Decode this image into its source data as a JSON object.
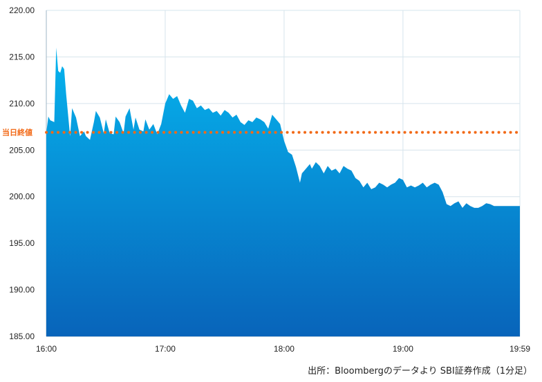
{
  "chart_data": {
    "type": "area",
    "x_tick_labels": [
      "16:00",
      "17:00",
      "18:00",
      "19:00",
      "19:59"
    ],
    "x_tick_minutes": [
      0,
      60,
      120,
      180,
      239
    ],
    "y_tick_labels": [
      "185.00",
      "190.00",
      "195.00",
      "200.00",
      "205.00",
      "210.00",
      "215.00",
      "220.00"
    ],
    "y_ticks": [
      185,
      190,
      195,
      200,
      205,
      210,
      215,
      220
    ],
    "ylim": [
      185,
      220
    ],
    "xlim": [
      0,
      239
    ],
    "reference_line": {
      "label": "当日終値",
      "value": 206.9
    },
    "series": [
      {
        "points": [
          [
            0,
            206.9
          ],
          [
            1,
            208.6
          ],
          [
            2,
            208.2
          ],
          [
            4,
            208.0
          ],
          [
            5,
            216.0
          ],
          [
            6,
            213.5
          ],
          [
            7,
            213.3
          ],
          [
            8,
            214.0
          ],
          [
            9,
            213.7
          ],
          [
            10,
            211.0
          ],
          [
            12,
            206.5
          ],
          [
            13,
            209.5
          ],
          [
            15,
            208.5
          ],
          [
            17,
            206.5
          ],
          [
            19,
            207.0
          ],
          [
            20,
            206.5
          ],
          [
            22,
            206.1
          ],
          [
            24,
            208.0
          ],
          [
            25,
            209.2
          ],
          [
            27,
            208.5
          ],
          [
            29,
            206.8
          ],
          [
            30,
            208.3
          ],
          [
            32,
            206.8
          ],
          [
            34,
            206.7
          ],
          [
            35,
            208.6
          ],
          [
            37,
            208.0
          ],
          [
            39,
            206.8
          ],
          [
            40,
            208.6
          ],
          [
            42,
            209.5
          ],
          [
            44,
            207.2
          ],
          [
            45,
            208.5
          ],
          [
            47,
            207.2
          ],
          [
            49,
            207.0
          ],
          [
            50,
            208.3
          ],
          [
            52,
            207.2
          ],
          [
            54,
            207.8
          ],
          [
            56,
            206.7
          ],
          [
            58,
            207.8
          ],
          [
            60,
            210.0
          ],
          [
            62,
            211.0
          ],
          [
            64,
            210.5
          ],
          [
            66,
            210.8
          ],
          [
            68,
            209.8
          ],
          [
            70,
            209.0
          ],
          [
            72,
            210.5
          ],
          [
            74,
            210.3
          ],
          [
            76,
            209.5
          ],
          [
            78,
            209.8
          ],
          [
            80,
            209.3
          ],
          [
            82,
            209.5
          ],
          [
            84,
            209.0
          ],
          [
            86,
            209.2
          ],
          [
            88,
            208.7
          ],
          [
            90,
            209.3
          ],
          [
            92,
            209.0
          ],
          [
            94,
            208.5
          ],
          [
            96,
            208.8
          ],
          [
            98,
            208.0
          ],
          [
            100,
            207.7
          ],
          [
            102,
            208.2
          ],
          [
            104,
            208.0
          ],
          [
            106,
            208.5
          ],
          [
            108,
            208.3
          ],
          [
            110,
            208.0
          ],
          [
            112,
            207.3
          ],
          [
            114,
            208.8
          ],
          [
            116,
            208.3
          ],
          [
            118,
            207.8
          ],
          [
            120,
            206.0
          ],
          [
            122,
            204.8
          ],
          [
            124,
            204.5
          ],
          [
            126,
            203.2
          ],
          [
            128,
            201.5
          ],
          [
            129,
            202.5
          ],
          [
            131,
            203.0
          ],
          [
            133,
            203.5
          ],
          [
            134,
            203.0
          ],
          [
            136,
            203.7
          ],
          [
            138,
            203.3
          ],
          [
            140,
            202.5
          ],
          [
            142,
            203.3
          ],
          [
            144,
            202.8
          ],
          [
            146,
            203.0
          ],
          [
            148,
            202.5
          ],
          [
            150,
            203.3
          ],
          [
            152,
            203.0
          ],
          [
            154,
            202.8
          ],
          [
            156,
            202.0
          ],
          [
            158,
            201.7
          ],
          [
            160,
            201.0
          ],
          [
            162,
            201.5
          ],
          [
            164,
            200.8
          ],
          [
            166,
            201.0
          ],
          [
            168,
            201.5
          ],
          [
            170,
            201.3
          ],
          [
            172,
            201.0
          ],
          [
            174,
            201.3
          ],
          [
            176,
            201.5
          ],
          [
            178,
            202.0
          ],
          [
            180,
            201.8
          ],
          [
            182,
            201.0
          ],
          [
            184,
            201.2
          ],
          [
            186,
            201.0
          ],
          [
            188,
            201.2
          ],
          [
            190,
            201.5
          ],
          [
            192,
            201.0
          ],
          [
            194,
            201.3
          ],
          [
            196,
            201.5
          ],
          [
            198,
            201.3
          ],
          [
            200,
            200.5
          ],
          [
            202,
            199.2
          ],
          [
            204,
            199.0
          ],
          [
            206,
            199.3
          ],
          [
            208,
            199.5
          ],
          [
            210,
            198.8
          ],
          [
            212,
            199.3
          ],
          [
            214,
            199.0
          ],
          [
            216,
            198.8
          ],
          [
            218,
            198.8
          ],
          [
            220,
            199.0
          ],
          [
            222,
            199.3
          ],
          [
            224,
            199.2
          ],
          [
            226,
            199.0
          ],
          [
            228,
            199.0
          ],
          [
            230,
            199.0
          ],
          [
            232,
            199.0
          ],
          [
            234,
            199.0
          ],
          [
            236,
            199.0
          ],
          [
            239,
            199.0
          ]
        ]
      }
    ],
    "colors": {
      "area_top": "#06b4ee",
      "area_bottom": "#0864ba",
      "reference_line": "#f26a18",
      "grid": "#d6e4ec"
    }
  },
  "source_text": "出所：Bloombergのデータより SBI証券作成（1分足）"
}
